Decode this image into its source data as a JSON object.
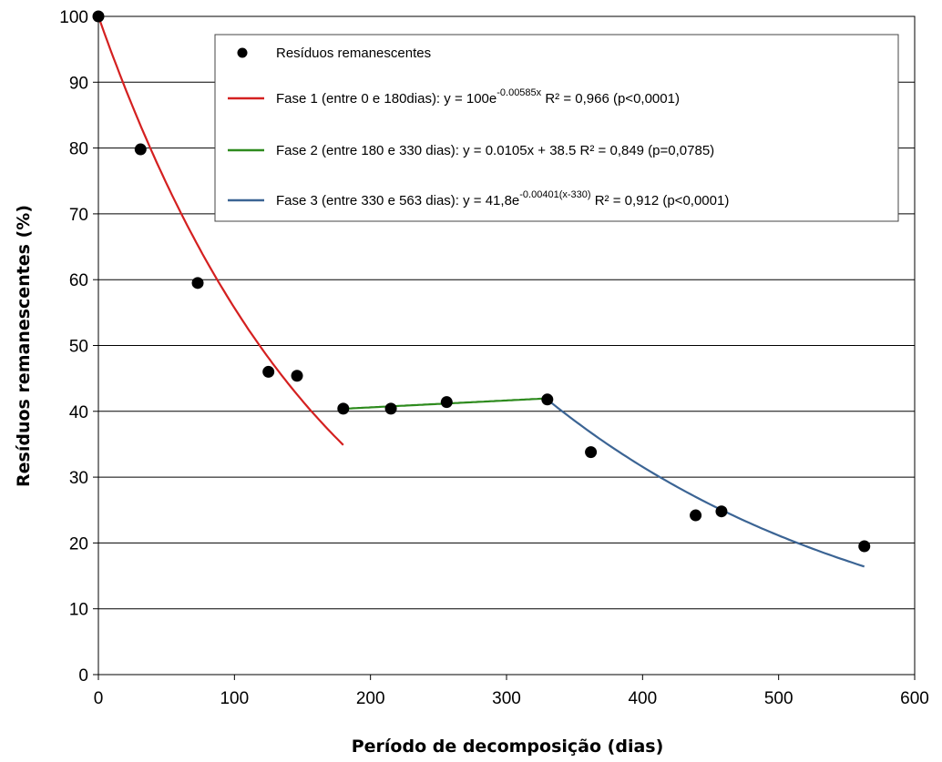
{
  "chart_data": {
    "type": "scatter",
    "xlabel": "Período de decomposição (dias)",
    "ylabel": "Resíduos remanescentes (%)",
    "xlim": [
      0,
      600
    ],
    "ylim": [
      0,
      100
    ],
    "xticks": [
      0,
      100,
      200,
      300,
      400,
      500,
      600
    ],
    "yticks": [
      0,
      10,
      20,
      30,
      40,
      50,
      60,
      70,
      80,
      90,
      100
    ],
    "grid": "horizontal",
    "legend_position": "top-right",
    "points": {
      "name": "Resíduos remanescentes",
      "color": "#000000",
      "x": [
        0,
        31,
        73,
        125,
        146,
        180,
        215,
        256,
        330,
        362,
        439,
        458,
        563
      ],
      "y": [
        100,
        79.8,
        59.5,
        46,
        45.4,
        40.4,
        40.4,
        41.4,
        41.8,
        33.8,
        24.2,
        24.8,
        19.5
      ]
    },
    "series": [
      {
        "name": "Fase 1",
        "color": "#d42020",
        "x_range": [
          0,
          180
        ],
        "model": "exp",
        "a": 100,
        "b": -0.00585,
        "x0": 0,
        "legend": {
          "pre": "Fase 1 (entre 0 e 180dias): y = 100e",
          "sup": "-0.00585x",
          "post": " R² = 0,966 (p<0,0001)"
        }
      },
      {
        "name": "Fase 2",
        "color": "#2e8b1e",
        "x_range": [
          180,
          330
        ],
        "model": "linear",
        "slope": 0.0105,
        "intercept": 38.5,
        "legend": {
          "pre": "Fase 2 (entre 180 e 330 dias): y = 0.0105x + 38.5 R² = 0,849 (p=0,0785)",
          "sup": "",
          "post": ""
        }
      },
      {
        "name": "Fase 3",
        "color": "#3b6494",
        "x_range": [
          330,
          563
        ],
        "model": "exp",
        "a": 41.8,
        "b": -0.00401,
        "x0": 330,
        "legend": {
          "pre": "Fase 3 (entre 330 e 563 dias): y = 41,8e",
          "sup": "-0.00401(x-330)",
          "post": " R² = 0,912 (p<0,0001)"
        }
      }
    ]
  }
}
